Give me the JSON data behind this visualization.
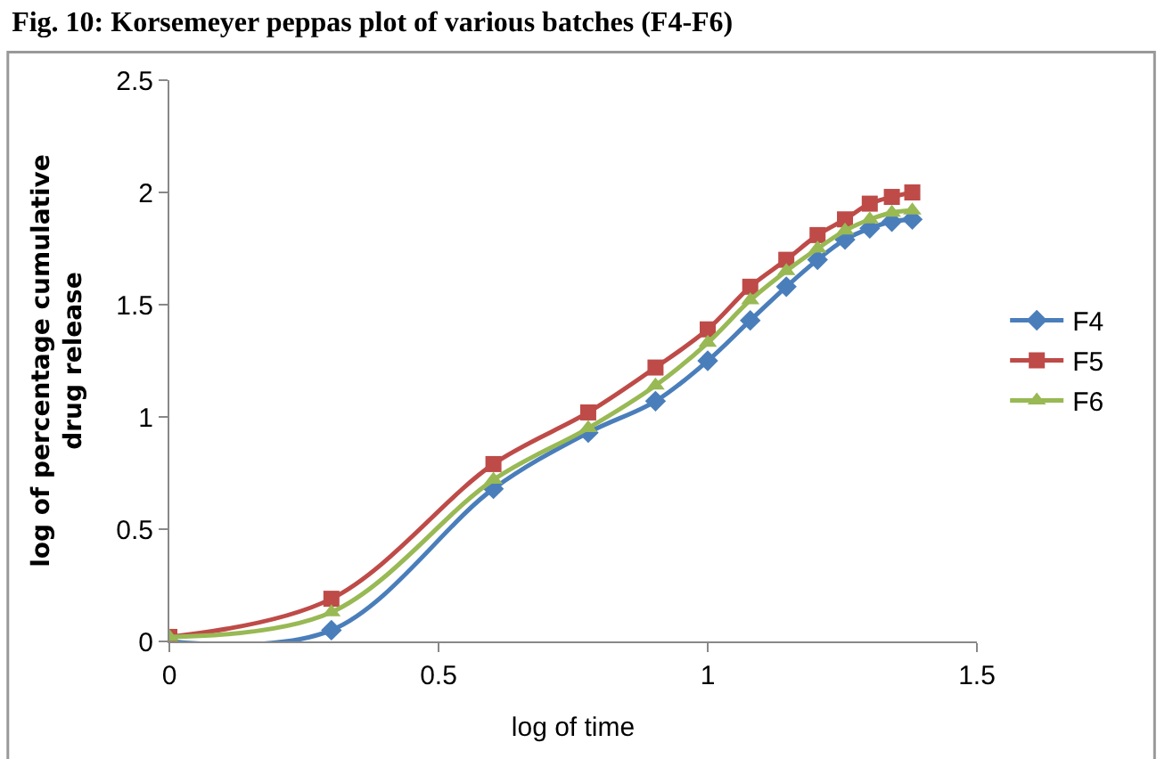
{
  "chart_data": {
    "type": "line",
    "title": "Fig. 10: Korsemeyer peppas plot of various batches (F4-F6)",
    "xlabel": "log of time",
    "ylabel": "log of percentage cumulative drug release",
    "x": [
      0,
      0.301,
      0.602,
      0.778,
      0.903,
      1.0,
      1.079,
      1.146,
      1.204,
      1.255,
      1.301,
      1.342,
      1.38
    ],
    "series": [
      {
        "name": "F4",
        "color": "#4a7ebb",
        "marker": "diamond",
        "values": [
          0,
          0.05,
          0.68,
          0.93,
          1.07,
          1.25,
          1.43,
          1.58,
          1.7,
          1.79,
          1.84,
          1.87,
          1.88
        ]
      },
      {
        "name": "F5",
        "color": "#be4b48",
        "marker": "square",
        "values": [
          0.02,
          0.19,
          0.79,
          1.02,
          1.22,
          1.39,
          1.58,
          1.7,
          1.81,
          1.88,
          1.95,
          1.98,
          2.0
        ]
      },
      {
        "name": "F6",
        "color": "#98b954",
        "marker": "triangle",
        "values": [
          0.02,
          0.13,
          0.72,
          0.95,
          1.14,
          1.33,
          1.52,
          1.65,
          1.75,
          1.83,
          1.88,
          1.91,
          1.92
        ]
      }
    ],
    "xlim": [
      0,
      1.5
    ],
    "xticks": [
      0,
      0.5,
      1,
      1.5
    ],
    "ylim": [
      0,
      2.5
    ],
    "yticks": [
      0,
      0.5,
      1,
      1.5,
      2,
      2.5
    ],
    "legend": "right",
    "line_style": "solid"
  }
}
